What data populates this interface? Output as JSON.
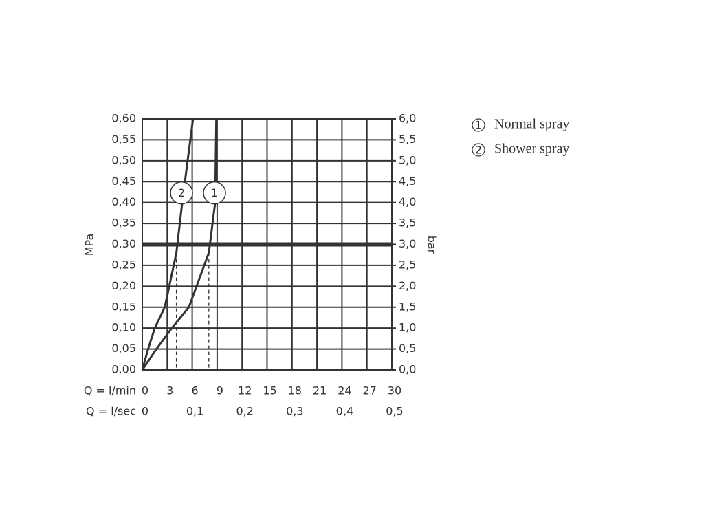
{
  "chart_data": {
    "type": "line",
    "y_label": "MPa",
    "y2_label": "bar",
    "x_row_label": "Q = l/min",
    "x2_row_label": "Q = l/sec",
    "xlim": [
      0,
      30
    ],
    "xticks": [
      0,
      3,
      6,
      9,
      12,
      15,
      18,
      21,
      24,
      27,
      30
    ],
    "x2lim": [
      0,
      0.5
    ],
    "x2ticks": [
      0,
      {
        "value": 0.1,
        "label": "0,1"
      },
      {
        "value": 0.2,
        "label": "0,2"
      },
      {
        "value": 0.3,
        "label": "0,3"
      },
      {
        "value": 0.4,
        "label": "0,4"
      },
      {
        "value": 0.5,
        "label": "0,5"
      }
    ],
    "ylim": [
      0,
      0.6
    ],
    "yticks": [
      {
        "value": 0,
        "label": "0,00"
      },
      {
        "value": 0.05,
        "label": "0,05"
      },
      {
        "value": 0.1,
        "label": "0,10"
      },
      {
        "value": 0.15,
        "label": "0,15"
      },
      {
        "value": 0.2,
        "label": "0,20"
      },
      {
        "value": 0.25,
        "label": "0,25"
      },
      {
        "value": 0.3,
        "label": "0,30"
      },
      {
        "value": 0.35,
        "label": "0,35"
      },
      {
        "value": 0.4,
        "label": "0,40"
      },
      {
        "value": 0.45,
        "label": "0,45"
      },
      {
        "value": 0.5,
        "label": "0,50"
      },
      {
        "value": 0.55,
        "label": "0,55"
      },
      {
        "value": 0.6,
        "label": "0,60"
      }
    ],
    "y2lim": [
      0,
      6
    ],
    "y2ticks": [
      {
        "value": 0,
        "label": "0,0"
      },
      {
        "value": 0.5,
        "label": "0,5"
      },
      {
        "value": 1,
        "label": "1,0"
      },
      {
        "value": 1.5,
        "label": "1,5"
      },
      {
        "value": 2,
        "label": "2,0"
      },
      {
        "value": 2.5,
        "label": "2,5"
      },
      {
        "value": 3,
        "label": "3,0"
      },
      {
        "value": 3.5,
        "label": "3,5"
      },
      {
        "value": 4,
        "label": "4,0"
      },
      {
        "value": 4.5,
        "label": "4,5"
      },
      {
        "value": 5,
        "label": "5,0"
      },
      {
        "value": 5.5,
        "label": "5,5"
      },
      {
        "value": 6,
        "label": "6,0"
      }
    ],
    "grid": true,
    "hline": 0.3,
    "series": [
      {
        "name": "Normal spray",
        "marker_label": "1",
        "color": "#333333",
        "x": [
          0,
          1.7,
          3.55,
          5.6,
          8,
          8.76,
          8.9
        ],
        "y": [
          0,
          0.05,
          0.1,
          0.15,
          0.28,
          0.4,
          0.6
        ]
      },
      {
        "name": "Shower spray",
        "marker_label": "2",
        "color": "#333333",
        "x": [
          0,
          0.7,
          1.5,
          2.7,
          4.1,
          4.8,
          6.1
        ],
        "y": [
          0,
          0.05,
          0.1,
          0.15,
          0.28,
          0.4,
          0.6
        ]
      }
    ]
  }
}
